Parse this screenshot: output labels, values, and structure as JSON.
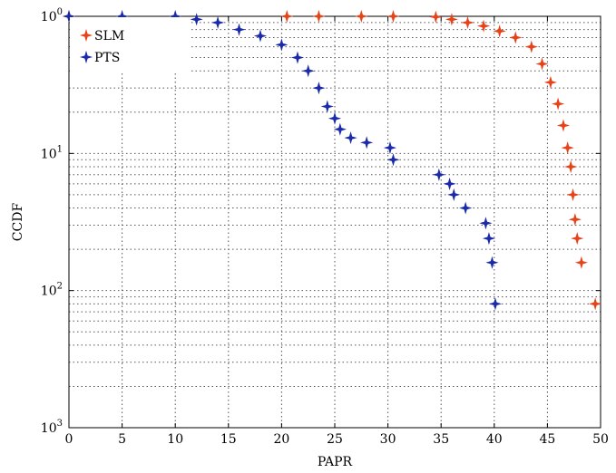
{
  "chart_data": {
    "type": "scatter",
    "xlabel": "PAPR",
    "ylabel": "CCDF",
    "xlim": [
      0,
      50
    ],
    "ylim": [
      0.001,
      1
    ],
    "yscale": "log",
    "x_ticks": [
      "0",
      "5",
      "10",
      "15",
      "20",
      "25",
      "30",
      "35",
      "40",
      "45",
      "50"
    ],
    "y_ticks": [
      {
        "value": 1,
        "base": "10",
        "exp": "0"
      },
      {
        "value": 0.1,
        "base": "10",
        "exp": "1"
      },
      {
        "value": 0.01,
        "base": "10",
        "exp": "2"
      },
      {
        "value": 0.001,
        "base": "10",
        "exp": "3"
      }
    ],
    "grid": "dotted, major and minor",
    "legend_position": "top-left",
    "series": [
      {
        "name": "SLM",
        "color": "#e5431a",
        "marker": "star",
        "x": [
          0,
          20.5,
          23.5,
          27.5,
          30.5,
          34.5,
          36,
          37.5,
          39,
          40.5,
          42,
          43.5,
          44.5,
          45.3,
          46,
          46.5,
          46.9,
          47.2,
          47.4,
          47.6,
          47.8,
          48.2,
          49.5
        ],
        "y": [
          1,
          1,
          1,
          1,
          1,
          0.99,
          0.95,
          0.9,
          0.85,
          0.78,
          0.7,
          0.6,
          0.45,
          0.33,
          0.23,
          0.16,
          0.11,
          0.08,
          0.05,
          0.033,
          0.024,
          0.016,
          0.008
        ]
      },
      {
        "name": "PTS",
        "color": "#1a2aa8",
        "marker": "star",
        "x": [
          0,
          5,
          10,
          12,
          14,
          16,
          18,
          20,
          21.5,
          22.5,
          23.5,
          24.3,
          25,
          25.5,
          26.5,
          28,
          30.2,
          30.5,
          34.8,
          35.8,
          36.2,
          37.3,
          39.2,
          39.5,
          39.8,
          40.1
        ],
        "y": [
          1,
          1,
          1,
          0.95,
          0.9,
          0.8,
          0.72,
          0.62,
          0.5,
          0.4,
          0.3,
          0.22,
          0.18,
          0.15,
          0.13,
          0.12,
          0.11,
          0.09,
          0.07,
          0.06,
          0.05,
          0.04,
          0.031,
          0.024,
          0.016,
          0.008
        ]
      }
    ]
  }
}
